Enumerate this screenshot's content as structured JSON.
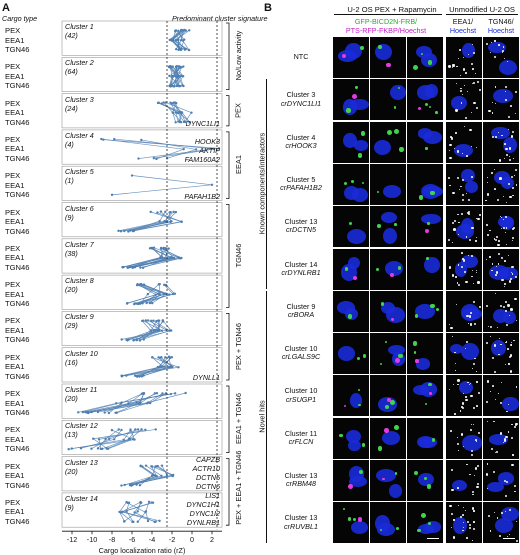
{
  "panel_a": {
    "letter": "A",
    "header_left": "Cargo type",
    "header_right": "Predominant cluster signature",
    "cargo_labels": [
      "PEX",
      "EEA1",
      "TGN46"
    ],
    "x_axis_label": "Cargo localization ratio (rZ)",
    "x_ticks": [
      "-12",
      "-10",
      "-8",
      "-6",
      "-4",
      "-2",
      "0",
      "2"
    ],
    "clusters": [
      {
        "name": "Cluster 1",
        "n": "(42)",
        "genes": []
      },
      {
        "name": "Cluster 2",
        "n": "(64)",
        "genes": []
      },
      {
        "name": "Cluster 3",
        "n": "(24)",
        "genes": [
          "DYNC1LI1"
        ]
      },
      {
        "name": "Cluster 4",
        "n": "(4)",
        "genes": [
          "HOOK3",
          "AKTIP",
          "FAM160A2"
        ]
      },
      {
        "name": "Cluster 5",
        "n": "(1)",
        "genes": [
          "PAFAH1B2"
        ]
      },
      {
        "name": "Cluster 6",
        "n": "(9)",
        "genes": []
      },
      {
        "name": "Cluster 7",
        "n": "(38)",
        "genes": []
      },
      {
        "name": "Cluster 8",
        "n": "(20)",
        "genes": []
      },
      {
        "name": "Cluster 9",
        "n": "(29)",
        "genes": []
      },
      {
        "name": "Cluster 10",
        "n": "(16)",
        "genes": [
          "DYNLL1"
        ]
      },
      {
        "name": "Cluster 11",
        "n": "(20)",
        "genes": []
      },
      {
        "name": "Cluster 12",
        "n": "(13)",
        "genes": []
      },
      {
        "name": "Cluster 13",
        "n": "(20)",
        "genes": [
          "CAPZB",
          "ACTR10",
          "DCTN5",
          "DCTN6"
        ]
      },
      {
        "name": "Cluster 14",
        "n": "(9)",
        "genes": [
          "LIS1",
          "DYNC1H1",
          "DYNC1I2",
          "DYNLRB1"
        ]
      }
    ],
    "signatures": [
      "No/Low activity",
      "PEX",
      "EEA1",
      "TGN46",
      "PEX + TGN46",
      "EEA1 + TGN46",
      "PEX + EEA1 + TGN46"
    ]
  },
  "panel_b": {
    "letter": "B",
    "header_left": "U-2 OS PEX + Rapamycin",
    "header_right": "Unmodified U-2 OS",
    "legend_left": [
      "GFP-BICD2N-FRB/",
      "PTS-RFP-FKBP/Hoechst"
    ],
    "legend_mid": [
      "EEA1/",
      "Hoechst"
    ],
    "legend_right": [
      "TGN46/",
      "Hoechst"
    ],
    "group_known": "Known components/interactors",
    "group_novel": "Novel hits",
    "rows": [
      {
        "c": "NTC",
        "g": ""
      },
      {
        "c": "Cluster 3",
        "g": "crDYNC1LI1"
      },
      {
        "c": "Cluster 4",
        "g": "crHOOK3"
      },
      {
        "c": "Cluster 5",
        "g": "crPAFAH1B2"
      },
      {
        "c": "Cluster 13",
        "g": "crDCTN5"
      },
      {
        "c": "Cluster 14",
        "g": "crDYNLRB1"
      },
      {
        "c": "Cluster 9",
        "g": "crBORA"
      },
      {
        "c": "Cluster 10",
        "g": "crLGALS9C"
      },
      {
        "c": "Cluster 10",
        "g": "crSUGP1"
      },
      {
        "c": "Cluster 11",
        "g": "crFLCN"
      },
      {
        "c": "Cluster 13",
        "g": "crRBM48"
      },
      {
        "c": "Cluster 13",
        "g": "crRUVBL1"
      }
    ]
  },
  "colors": {
    "line": "#4f7fb1",
    "green": "#3ed54a",
    "magenta": "#e23be0",
    "blue": "#1a2bd8"
  }
}
